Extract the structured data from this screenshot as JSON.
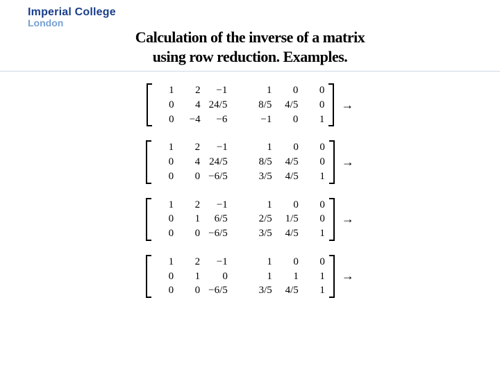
{
  "colors": {
    "logo_primary": "#1a3e8a",
    "logo_secondary": "#769fd4",
    "divider": "#cfd8e6",
    "text": "#000000",
    "background": "#ffffff"
  },
  "fonts": {
    "logo_family": "Arial",
    "title_family": "Times New Roman",
    "matrix_family": "Times New Roman",
    "title_size_pt": 22,
    "matrix_size_pt": 15
  },
  "logo": {
    "line1": "Imperial College",
    "line2": "London"
  },
  "title": {
    "line1": "Calculation of the inverse of a matrix",
    "line2": "using row reduction. Examples."
  },
  "arrow_glyph": "→",
  "steps": [
    {
      "left": [
        [
          "1",
          "2",
          "−1"
        ],
        [
          "0",
          "4",
          "24/5"
        ],
        [
          "0",
          "−4",
          "−6"
        ]
      ],
      "right": [
        [
          "1",
          "0",
          "0"
        ],
        [
          "8/5",
          "4/5",
          "0"
        ],
        [
          "−1",
          "0",
          "1"
        ]
      ]
    },
    {
      "left": [
        [
          "1",
          "2",
          "−1"
        ],
        [
          "0",
          "4",
          "24/5"
        ],
        [
          "0",
          "0",
          "−6/5"
        ]
      ],
      "right": [
        [
          "1",
          "0",
          "0"
        ],
        [
          "8/5",
          "4/5",
          "0"
        ],
        [
          "3/5",
          "4/5",
          "1"
        ]
      ]
    },
    {
      "left": [
        [
          "1",
          "2",
          "−1"
        ],
        [
          "0",
          "1",
          "6/5"
        ],
        [
          "0",
          "0",
          "−6/5"
        ]
      ],
      "right": [
        [
          "1",
          "0",
          "0"
        ],
        [
          "2/5",
          "1/5",
          "0"
        ],
        [
          "3/5",
          "4/5",
          "1"
        ]
      ]
    },
    {
      "left": [
        [
          "1",
          "2",
          "−1"
        ],
        [
          "0",
          "1",
          "0"
        ],
        [
          "0",
          "0",
          "−6/5"
        ]
      ],
      "right": [
        [
          "1",
          "0",
          "0"
        ],
        [
          "1",
          "1",
          "1"
        ],
        [
          "3/5",
          "4/5",
          "1"
        ]
      ]
    }
  ]
}
